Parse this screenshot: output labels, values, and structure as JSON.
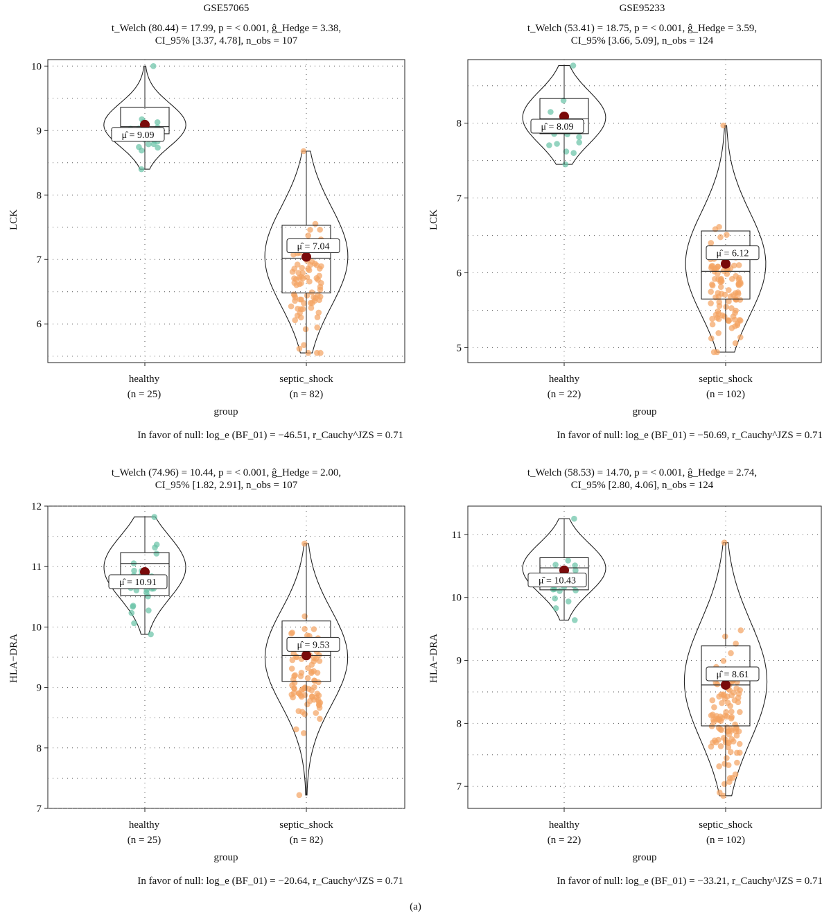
{
  "caption": "(a)",
  "chart_data": [
    {
      "type": "violin-box-scatter",
      "title": "GSE57065",
      "stats_line1": "t_Welch (80.44) = 17.99, p = < 0.001, ĝ_Hedge = 3.38,",
      "stats_line2": "CI_95% [3.37, 4.78], n_obs = 107",
      "ylabel": "LCK",
      "xlabel": "group",
      "ylim": [
        5.4,
        10.1
      ],
      "yticks": [
        6,
        7,
        8,
        9,
        10
      ],
      "grid": "dotted",
      "groups": [
        {
          "name": "healthy",
          "n_label": "(n = 25)",
          "mean_label": "μ̂ = 9.09",
          "mean": 9.09,
          "min": 8.4,
          "q1": 8.95,
          "median": 9.06,
          "q3": 9.36,
          "max": 10.0,
          "color": "#66c2a5"
        },
        {
          "name": "septic_shock",
          "n_label": "(n = 82)",
          "mean_label": "μ̂ = 7.04",
          "mean": 7.04,
          "min": 5.55,
          "q1": 6.48,
          "median": 7.02,
          "q3": 7.53,
          "max": 8.68,
          "color": "#f4a261"
        }
      ],
      "bayes_factor": "In favor of null: log_e (BF_01) = −46.51, r_Cauchy^JZS = 0.71"
    },
    {
      "type": "violin-box-scatter",
      "title": "GSE95233",
      "stats_line1": "t_Welch (53.41) = 18.75, p = < 0.001, ĝ_Hedge = 3.59,",
      "stats_line2": "CI_95% [3.66, 5.09], n_obs = 124",
      "ylabel": "LCK",
      "xlabel": "group",
      "ylim": [
        4.8,
        8.85
      ],
      "yticks": [
        5,
        6,
        7,
        8
      ],
      "grid": "dotted",
      "groups": [
        {
          "name": "healthy",
          "n_label": "(n = 22)",
          "mean_label": "μ̂ = 8.09",
          "mean": 8.09,
          "min": 7.45,
          "q1": 7.86,
          "median": 8.06,
          "q3": 8.33,
          "max": 8.77,
          "color": "#66c2a5"
        },
        {
          "name": "septic_shock",
          "n_label": "(n = 102)",
          "mean_label": "μ̂ = 6.12",
          "mean": 6.12,
          "min": 4.94,
          "q1": 5.65,
          "median": 6.02,
          "q3": 6.56,
          "max": 7.97,
          "color": "#f4a261"
        }
      ],
      "bayes_factor": "In favor of null: log_e (BF_01) = −50.69, r_Cauchy^JZS = 0.71"
    },
    {
      "type": "violin-box-scatter",
      "title": "",
      "stats_line1": "t_Welch (74.96) = 10.44, p = < 0.001, ĝ_Hedge = 2.00,",
      "stats_line2": "CI_95% [1.82, 2.91], n_obs = 107",
      "ylabel": "HLA−DRA",
      "xlabel": "group",
      "ylim": [
        7.0,
        12.0
      ],
      "yticks": [
        7,
        8,
        9,
        10,
        11,
        12
      ],
      "grid": "dotted",
      "groups": [
        {
          "name": "healthy",
          "n_label": "(n = 25)",
          "mean_label": "μ̂ = 10.91",
          "mean": 10.91,
          "min": 9.88,
          "q1": 10.52,
          "median": 11.05,
          "q3": 11.23,
          "max": 11.82,
          "color": "#66c2a5"
        },
        {
          "name": "septic_shock",
          "n_label": "(n = 82)",
          "mean_label": "μ̂ = 9.53",
          "mean": 9.53,
          "min": 7.22,
          "q1": 9.1,
          "median": 9.53,
          "q3": 10.1,
          "max": 11.38,
          "color": "#f4a261"
        }
      ],
      "bayes_factor": "In favor of null: log_e (BF_01) = −20.64, r_Cauchy^JZS = 0.71"
    },
    {
      "type": "violin-box-scatter",
      "title": "",
      "stats_line1": "t_Welch (58.53) = 14.70, p = < 0.001, ĝ_Hedge = 2.74,",
      "stats_line2": "CI_95% [2.80, 4.06], n_obs = 124",
      "ylabel": "HLA−DRA",
      "xlabel": "group",
      "ylim": [
        6.65,
        11.45
      ],
      "yticks": [
        7,
        8,
        9,
        10,
        11
      ],
      "grid": "dotted",
      "groups": [
        {
          "name": "healthy",
          "n_label": "(n = 22)",
          "mean_label": "μ̂ = 10.43",
          "mean": 10.43,
          "min": 9.64,
          "q1": 10.12,
          "median": 10.47,
          "q3": 10.63,
          "max": 11.25,
          "color": "#66c2a5"
        },
        {
          "name": "septic_shock",
          "n_label": "(n = 102)",
          "mean_label": "μ̂ = 8.61",
          "mean": 8.61,
          "min": 6.85,
          "q1": 7.96,
          "median": 8.61,
          "q3": 9.23,
          "max": 10.87,
          "color": "#f4a261"
        }
      ],
      "bayes_factor": "In favor of null: log_e (BF_01) = −33.21, r_Cauchy^JZS = 0.71"
    }
  ]
}
